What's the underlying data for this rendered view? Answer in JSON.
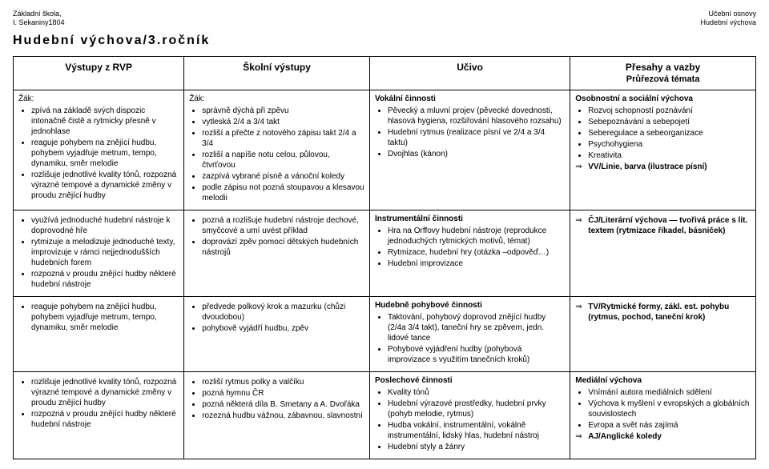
{
  "header": {
    "left": "Základní škola,\nI. Sekaniny1804",
    "right": "Učební osnovy\nHudební výchova"
  },
  "title": "Hudební výchova/3.ročník",
  "columns": {
    "c1": "Výstupy z RVP",
    "c2": "Školní výstupy",
    "c3": "Učivo",
    "c4_line1": "Přesahy a vazby",
    "c4_line2": "Průřezová témata"
  },
  "row1": {
    "rvp_label": "Žák:",
    "rvp_items": [
      "zpívá na základě svých dispozic intonačně čistě a rytmicky přesně v jednohlase",
      "reaguje pohybem na znějící hudbu, pohybem vyjadřuje metrum, tempo, dynamiku, směr melodie",
      "rozlišuje jednotlivé kvality tónů, rozpozná výrazné tempové a dynamické změny v proudu znějící hudby"
    ],
    "sv_label": "Žák:",
    "sv_items": [
      "správně dýchá při zpěvu",
      "vytleská 2/4 a 3/4 takt",
      "rozliší a přečte z notového zápisu takt 2/4 a 3/4",
      "rozliší a napíše notu celou, půlovou, čtvrťovou",
      "zazpívá vybrané písně a vánoční koledy",
      "podle zápisu not pozná stoupavou a klesavou melodii"
    ],
    "ucivo_heading": "Vokální činnosti",
    "ucivo_items": [
      "Pěvecký a mluvní projev (pěvecké dovednosti, hlasová hygiena, rozšiřování hlasového rozsahu)",
      "Hudební rytmus (realizace písní ve 2/4 a 3/4 taktu)",
      "Dvojhlas (kánon)"
    ],
    "presahy_heading": "Osobnostní a sociální výchova",
    "presahy_items": [
      "Rozvoj schopností poznávání",
      "Sebepoznávání a sebepojetí",
      "Seberegulace a sebeorganizace",
      "Psychohygiena",
      "Kreativita"
    ],
    "presahy_arrow": "VV/Linie, barva (ilustrace písní)"
  },
  "row2": {
    "rvp_items": [
      "využívá jednoduché hudební nástroje k doprovodné hře",
      "rytmizuje a melodizuje jednoduché texty, improvizuje v rámci nejjednodušších hudebních forem",
      "rozpozná v proudu znějící hudby některé hudební nástroje"
    ],
    "sv_items": [
      "pozná a rozlišuje hudební nástroje dechové, smyčcové a umí uvést příklad",
      "doprovází zpěv pomocí dětských hudebních nástrojů"
    ],
    "ucivo_heading": "Instrumentální činnosti",
    "ucivo_items": [
      "Hra na Orffovy hudební nástroje (reprodukce jednoduchých rytmických motivů, témat)",
      "Rytmizace, hudební hry (otázka –odpověď…)",
      "Hudební improvizace"
    ],
    "presahy_arrow": "ČJ/Literární výchova — tvořivá práce s lit. textem (rytmizace říkadel, básniček)"
  },
  "row3": {
    "rvp_items": [
      "reaguje pohybem na znějící hudbu, pohybem vyjadřuje metrum, tempo, dynamiku, směr melodie"
    ],
    "sv_items": [
      "předvede polkový krok a mazurku (chůzi dvoudobou)",
      "pohybově vyjádří hudbu, zpěv"
    ],
    "ucivo_heading": "Hudebně pohybové činnosti",
    "ucivo_items": [
      "Taktování, pohybový doprovod znějící hudby (2/4a 3/4 takt), taneční hry se zpěvem, jedn. lidové tance",
      "Pohybové vyjádření hudby (pohybová improvizace s využitím tanečních kroků)"
    ],
    "presahy_arrow": "TV/Rytmické formy, zákl. est. pohybu (rytmus, pochod, taneční krok)"
  },
  "row4": {
    "rvp_items": [
      "rozlišuje jednotlivé kvality tónů, rozpozná výrazné tempové a dynamické změny v proudu znějící hudby",
      "rozpozná v proudu znějící hudby některé hudební nástroje"
    ],
    "sv_items": [
      "rozliší rytmus polky a valčíku",
      "pozná hymnu ČR",
      "pozná některá díla B. Smetany a A. Dvořáka",
      "rozezná hudbu vážnou, zábavnou, slavnostní"
    ],
    "ucivo_heading": "Poslechové činnosti",
    "ucivo_items": [
      "Kvality tónů",
      "Hudební výrazové prostředky, hudební prvky (pohyb melodie, rytmus)",
      "Hudba vokální, instrumentální, vokálně instrumentální, lidský hlas, hudební nástroj",
      "Hudební styly a žánry"
    ],
    "presahy_heading": "Mediální výchova",
    "presahy_items": [
      "Vnímání autora mediálních sdělení",
      "Výchova k myšlení v evropských a globálních souvislostech",
      "Evropa a svět nás zajímá"
    ],
    "presahy_arrow": "AJ/Anglické koledy"
  }
}
